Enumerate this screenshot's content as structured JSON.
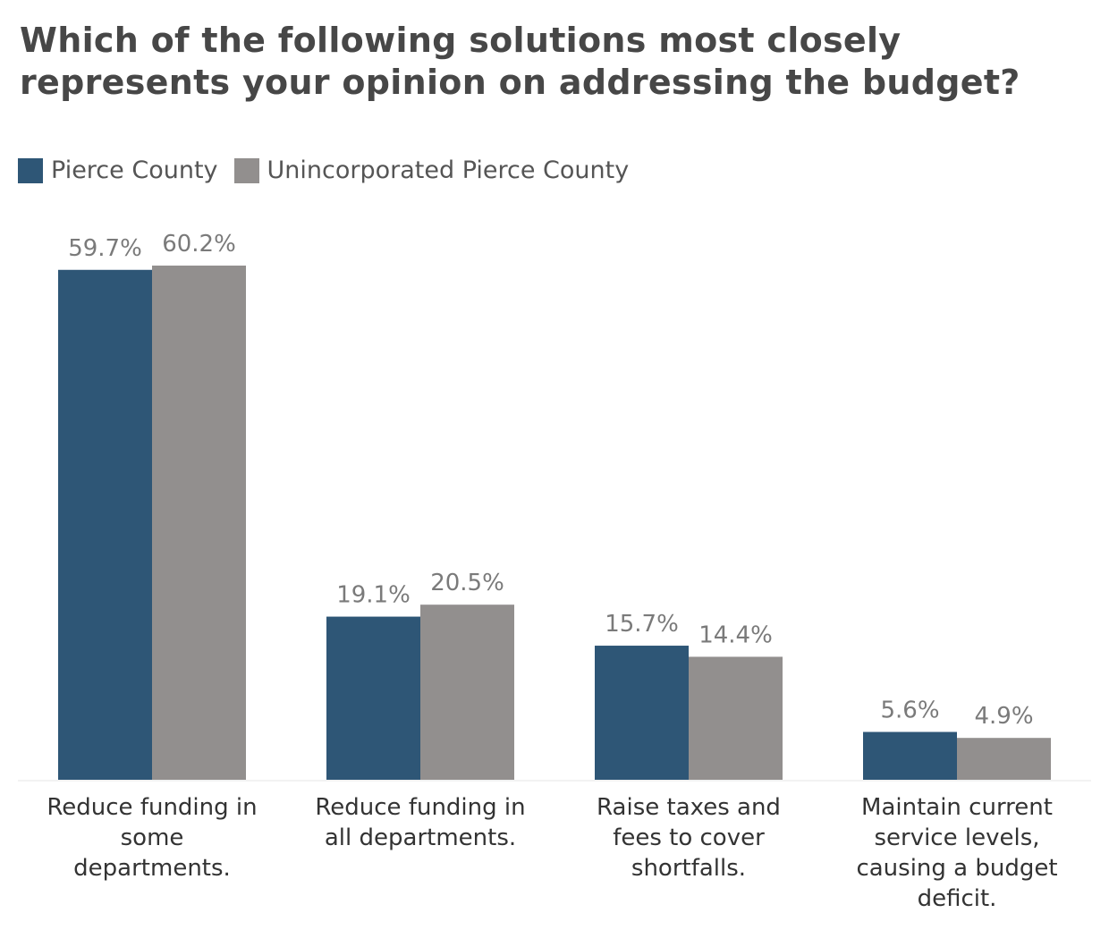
{
  "chart_data": {
    "type": "bar",
    "title": "Which of the following solutions most closely represents your opinion on addressing the budget?",
    "categories": [
      [
        "Reduce funding in",
        "some",
        "departments."
      ],
      [
        "Reduce funding in",
        "all departments."
      ],
      [
        "Raise taxes and",
        "fees to cover",
        "shortfalls."
      ],
      [
        "Maintain current",
        "service levels,",
        "causing a budget",
        "deficit."
      ]
    ],
    "series": [
      {
        "name": "Pierce County",
        "color": "#2e5676",
        "values": [
          59.7,
          19.1,
          15.7,
          5.6
        ],
        "labels": [
          "59.7%",
          "19.1%",
          "15.7%",
          "5.6%"
        ]
      },
      {
        "name": "Unincorporated Pierce County",
        "color": "#928f8e",
        "values": [
          60.2,
          20.5,
          14.4,
          4.9
        ],
        "labels": [
          "60.2%",
          "20.5%",
          "14.4%",
          "4.9%"
        ]
      }
    ],
    "ylim": [
      0,
      60.2
    ],
    "xlabel": "",
    "ylabel": "",
    "legend": "top-left",
    "grid": false
  }
}
